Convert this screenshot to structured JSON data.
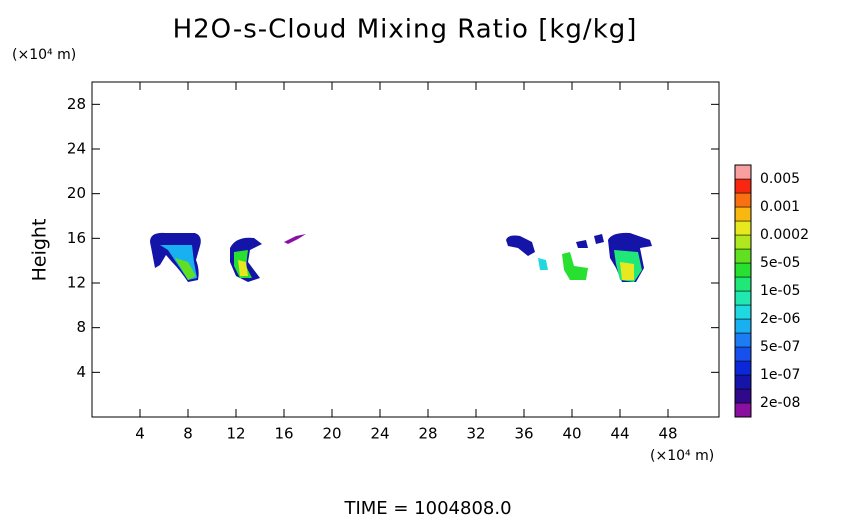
{
  "chart_data": {
    "type": "contourf",
    "title": "H2O-s-Cloud Mixing Ratio [kg/kg]",
    "y_unit": "(×10⁴ m)",
    "x_unit": "(×10⁴ m)",
    "ylabel": "Height",
    "footer": "TIME  =  1004808.0",
    "xlim": [
      0,
      52.25
    ],
    "ylim": [
      0,
      30
    ],
    "xticks": [
      4,
      8,
      12,
      16,
      20,
      24,
      28,
      32,
      36,
      40,
      44,
      48
    ],
    "yticks": [
      4,
      8,
      12,
      16,
      20,
      24,
      28
    ],
    "colorbar": {
      "labels": [
        "2e-08",
        "1e-07",
        "5e-07",
        "2e-06",
        "1e-05",
        "5e-05",
        "0.0002",
        "0.001",
        "0.005"
      ],
      "colors": [
        "#8a10a0",
        "#30088a",
        "#1414a8",
        "#0a28d8",
        "#1850ee",
        "#1c7cf4",
        "#18b0f0",
        "#20d8e0",
        "#20e8b0",
        "#20e878",
        "#28e030",
        "#60e020",
        "#b0e820",
        "#e8e820",
        "#f8b810",
        "#f87010",
        "#f82810",
        "#f8a0a0"
      ]
    }
  }
}
